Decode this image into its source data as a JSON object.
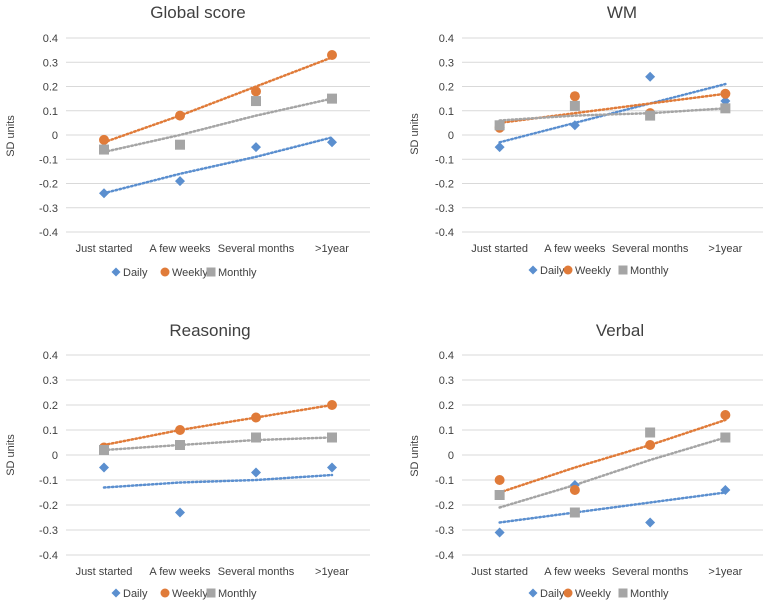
{
  "colors": {
    "daily": "#5B8FCF",
    "weekly": "#E07B39",
    "monthly": "#A5A5A5",
    "grid": "#D9D9D9",
    "text": "#404040"
  },
  "chart_data": [
    {
      "type": "scatter",
      "title": "Global  score",
      "ylabel": "SD units",
      "xlabel": "",
      "ylim": [
        -0.4,
        0.4
      ],
      "yticks": [
        "0.4",
        "0.3",
        "0.2",
        "0.1",
        "0",
        "-0.1",
        "-0.2",
        "-0.3",
        "-0.4"
      ],
      "categories": [
        "Just started",
        "A few weeks",
        "Several months",
        ">1year"
      ],
      "legend": [
        "Daily",
        "Weekly",
        "Monthly"
      ],
      "series": [
        {
          "name": "Daily",
          "marker": "diamond",
          "values": [
            -0.24,
            -0.19,
            -0.05,
            -0.03
          ],
          "trend": [
            -0.24,
            -0.16,
            -0.09,
            -0.01
          ]
        },
        {
          "name": "Weekly",
          "marker": "circle",
          "values": [
            -0.02,
            0.08,
            0.18,
            0.33
          ],
          "trend": [
            -0.03,
            0.08,
            0.2,
            0.32
          ]
        },
        {
          "name": "Monthly",
          "marker": "square",
          "values": [
            -0.06,
            -0.04,
            0.14,
            0.15
          ],
          "trend": [
            -0.07,
            0.0,
            0.08,
            0.15
          ]
        }
      ]
    },
    {
      "type": "scatter",
      "title": "WM",
      "ylabel": "SD units",
      "xlabel": "",
      "ylim": [
        -0.4,
        0.4
      ],
      "yticks": [
        "0.4",
        "0.3",
        "0.2",
        "0.1",
        "0",
        "-0.1",
        "-0.2",
        "-0.3",
        "-0.4"
      ],
      "categories": [
        "Just started",
        "A few weeks",
        "Several months",
        ">1year"
      ],
      "legend": [
        "Daily",
        "Weekly",
        "Monthly"
      ],
      "series": [
        {
          "name": "Daily",
          "marker": "diamond",
          "values": [
            -0.05,
            0.04,
            0.24,
            0.14
          ],
          "trend": [
            -0.03,
            0.05,
            0.13,
            0.21
          ]
        },
        {
          "name": "Weekly",
          "marker": "circle",
          "values": [
            0.03,
            0.16,
            0.09,
            0.17
          ],
          "trend": [
            0.05,
            0.09,
            0.13,
            0.17
          ]
        },
        {
          "name": "Monthly",
          "marker": "square",
          "values": [
            0.04,
            0.12,
            0.08,
            0.11
          ],
          "trend": [
            0.06,
            0.08,
            0.09,
            0.11
          ]
        }
      ]
    },
    {
      "type": "scatter",
      "title": "Reasoning",
      "ylabel": "SD units",
      "xlabel": "",
      "ylim": [
        -0.4,
        0.4
      ],
      "yticks": [
        "0.4",
        "0.3",
        "0.2",
        "0.1",
        "0",
        "-0.1",
        "-0.2",
        "-0.3",
        "-0.4"
      ],
      "categories": [
        "Just started",
        "A few weeks",
        "Several months",
        ">1year"
      ],
      "legend": [
        "Daily",
        "Weekly",
        "Monthly"
      ],
      "series": [
        {
          "name": "Daily",
          "marker": "diamond",
          "values": [
            -0.05,
            -0.23,
            -0.07,
            -0.05
          ],
          "trend": [
            -0.13,
            -0.11,
            -0.1,
            -0.08
          ]
        },
        {
          "name": "Weekly",
          "marker": "circle",
          "values": [
            0.03,
            0.1,
            0.15,
            0.2
          ],
          "trend": [
            0.04,
            0.1,
            0.15,
            0.2
          ]
        },
        {
          "name": "Monthly",
          "marker": "square",
          "values": [
            0.02,
            0.04,
            0.07,
            0.07
          ],
          "trend": [
            0.02,
            0.04,
            0.06,
            0.07
          ]
        }
      ]
    },
    {
      "type": "scatter",
      "title": "Verbal",
      "ylabel": "SD units",
      "xlabel": "",
      "ylim": [
        -0.4,
        0.4
      ],
      "yticks": [
        "0.4",
        "0.3",
        "0.2",
        "0.1",
        "0",
        "-0.1",
        "-0.2",
        "-0.3",
        "-0.4"
      ],
      "categories": [
        "Just started",
        "A few weeks",
        "Several months",
        ">1year"
      ],
      "legend": [
        "Daily",
        "Weekly",
        "Monthly"
      ],
      "series": [
        {
          "name": "Daily",
          "marker": "diamond",
          "values": [
            -0.31,
            -0.12,
            -0.27,
            -0.14
          ],
          "trend": [
            -0.27,
            -0.23,
            -0.19,
            -0.15
          ]
        },
        {
          "name": "Weekly",
          "marker": "circle",
          "values": [
            -0.1,
            -0.14,
            0.04,
            0.16
          ],
          "trend": [
            -0.15,
            -0.05,
            0.04,
            0.14
          ]
        },
        {
          "name": "Monthly",
          "marker": "square",
          "values": [
            -0.16,
            -0.23,
            0.09,
            0.07
          ],
          "trend": [
            -0.21,
            -0.12,
            -0.02,
            0.07
          ]
        }
      ]
    }
  ]
}
